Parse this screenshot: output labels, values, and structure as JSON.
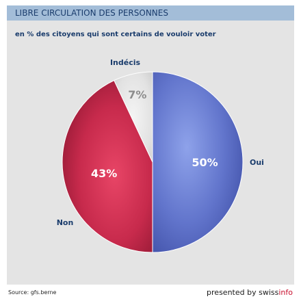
{
  "header": {
    "title": "LIBRE CIRCULATION DES PERSONNES",
    "subtitle": "en % des citoyens qui sont certains de vouloir voter"
  },
  "chart_data": {
    "type": "pie",
    "title": "LIBRE CIRCULATION DES PERSONNES",
    "subtitle": "en % des citoyens qui sont certains de vouloir voter",
    "slices": [
      {
        "name": "Oui",
        "value": 50,
        "label": "50%",
        "color": "#5a6fc4"
      },
      {
        "name": "Non",
        "value": 43,
        "label": "43%",
        "color": "#c2284a"
      },
      {
        "name": "Indécis",
        "value": 7,
        "label": "7%",
        "color": "#e2e2e2"
      }
    ]
  },
  "footer": {
    "source": "Source: gfs.berne",
    "credit_prefix": "presented by ",
    "brand_main": "swiss",
    "brand_accent": "info"
  },
  "colors": {
    "header_bar": "#a3bdd8",
    "panel_bg": "#e4e4e4",
    "text_dark_blue": "#1a3c6c",
    "accent_red": "#c8102e"
  }
}
